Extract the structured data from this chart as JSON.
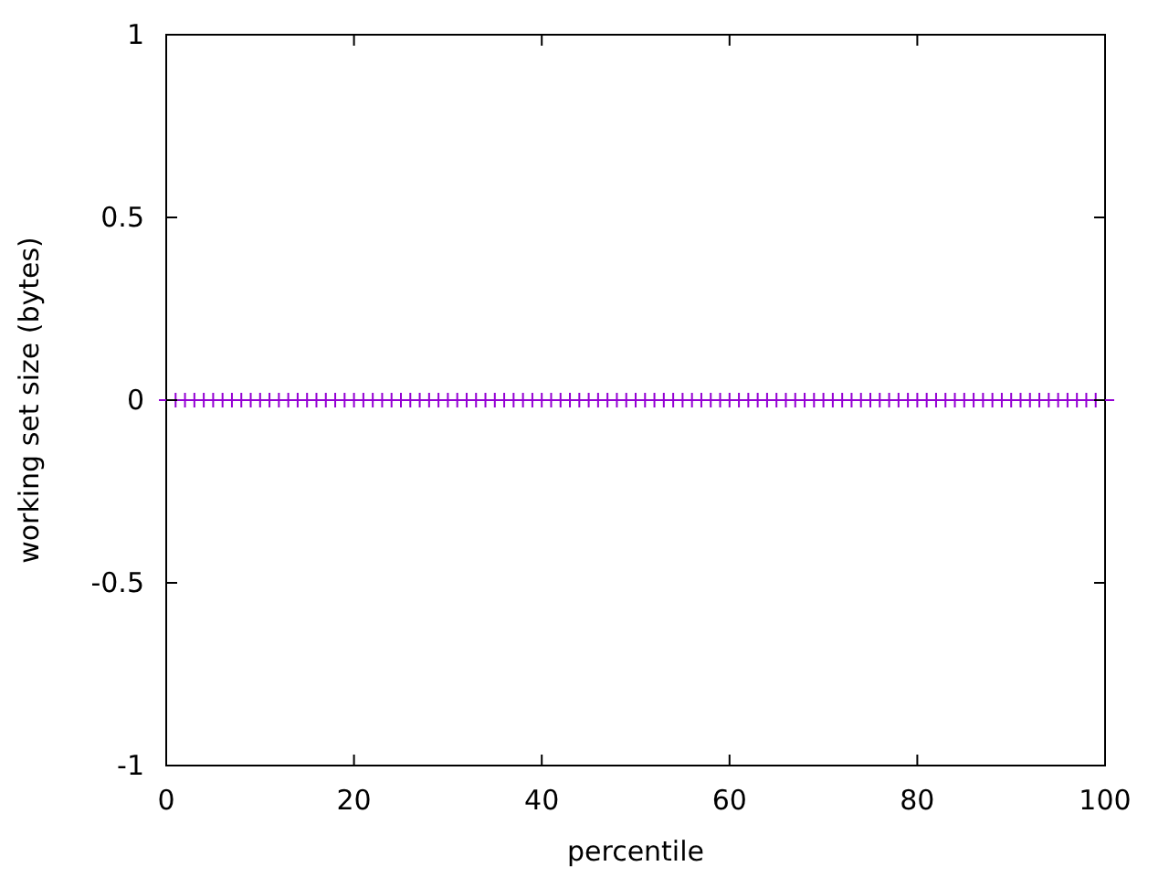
{
  "chart_data": {
    "type": "scatter",
    "xlabel": "percentile",
    "ylabel": "working set size (bytes)",
    "x": [
      1,
      2,
      3,
      4,
      5,
      6,
      7,
      8,
      9,
      10,
      11,
      12,
      13,
      14,
      15,
      16,
      17,
      18,
      19,
      20,
      21,
      22,
      23,
      24,
      25,
      26,
      27,
      28,
      29,
      30,
      31,
      32,
      33,
      34,
      35,
      36,
      37,
      38,
      39,
      40,
      41,
      42,
      43,
      44,
      45,
      46,
      47,
      48,
      49,
      50,
      51,
      52,
      53,
      54,
      55,
      56,
      57,
      58,
      59,
      60,
      61,
      62,
      63,
      64,
      65,
      66,
      67,
      68,
      69,
      70,
      71,
      72,
      73,
      74,
      75,
      76,
      77,
      78,
      79,
      80,
      81,
      82,
      83,
      84,
      85,
      86,
      87,
      88,
      89,
      90,
      91,
      92,
      93,
      94,
      95,
      96,
      97,
      98,
      99
    ],
    "series": [
      {
        "color": "#9400d3",
        "values": [
          0,
          0,
          0,
          0,
          0,
          0,
          0,
          0,
          0,
          0,
          0,
          0,
          0,
          0,
          0,
          0,
          0,
          0,
          0,
          0,
          0,
          0,
          0,
          0,
          0,
          0,
          0,
          0,
          0,
          0,
          0,
          0,
          0,
          0,
          0,
          0,
          0,
          0,
          0,
          0,
          0,
          0,
          0,
          0,
          0,
          0,
          0,
          0,
          0,
          0,
          0,
          0,
          0,
          0,
          0,
          0,
          0,
          0,
          0,
          0,
          0,
          0,
          0,
          0,
          0,
          0,
          0,
          0,
          0,
          0,
          0,
          0,
          0,
          0,
          0,
          0,
          0,
          0,
          0,
          0,
          0,
          0,
          0,
          0,
          0,
          0,
          0,
          0,
          0,
          0,
          0,
          0,
          0,
          0,
          0,
          0,
          0,
          0,
          0
        ]
      }
    ],
    "xlim": [
      0,
      100
    ],
    "xticks": [
      0,
      20,
      40,
      60,
      80,
      100
    ],
    "ylim": [
      -1,
      1
    ],
    "yticks": [
      -1,
      -0.5,
      0,
      0.5,
      1
    ],
    "ref_lines": [
      {
        "axis": "y",
        "value": 0,
        "color": "#9400d3"
      }
    ],
    "marker": "cross",
    "grid": false
  }
}
